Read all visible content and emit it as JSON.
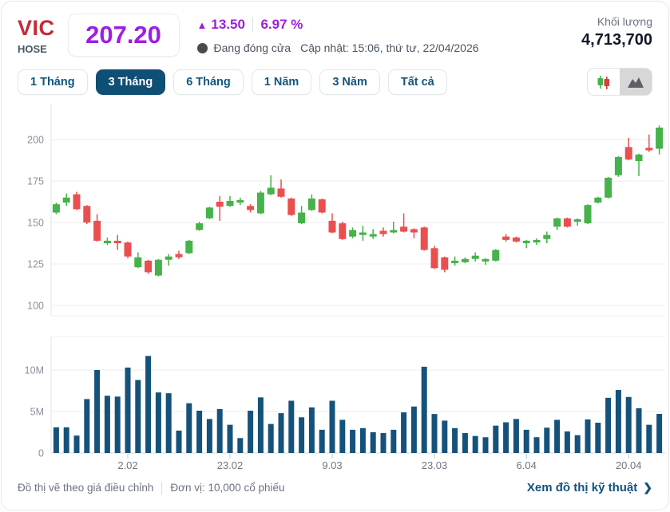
{
  "header": {
    "symbol": "VIC",
    "exchange": "HOSE",
    "price": "207.20",
    "up_arrow": "▲",
    "change": "13.50",
    "change_pct": "6.97 %",
    "market_status": "Đang đóng cửa",
    "updated": "Cập nhật: 15:06, thứ tư, 22/04/2026",
    "volume_label": "Khối lượng",
    "volume_value": "4,713,700"
  },
  "tabs": {
    "items": [
      {
        "label": "1 Tháng",
        "active": false
      },
      {
        "label": "3 Tháng",
        "active": true
      },
      {
        "label": "6 Tháng",
        "active": false
      },
      {
        "label": "1 Năm",
        "active": false
      },
      {
        "label": "3 Năm",
        "active": false
      },
      {
        "label": "Tất cả",
        "active": false
      }
    ]
  },
  "view_toggle": {
    "candlestick_icon": "candlestick-chart-icon",
    "area_icon": "area-chart-icon",
    "selected": "area"
  },
  "footer": {
    "note_adjusted": "Đồ thị vẽ theo giá điều chỉnh",
    "note_unit": "Đơn vị: 10,000 cổ phiếu",
    "link": "Xem đồ thị kỹ thuật",
    "chevron": "❯"
  },
  "chart_data": {
    "type": "candlestick+volume",
    "title": "",
    "ohlc_format": [
      "open",
      "high",
      "low",
      "close"
    ],
    "price_axis": {
      "ticks": [
        200,
        175,
        150,
        125,
        100
      ],
      "range": [
        96,
        220
      ],
      "grid": true
    },
    "volume_axis": {
      "tick_values": [
        10000000,
        5000000,
        0
      ],
      "tick_labels": [
        "10M",
        "5M",
        "0"
      ],
      "range": [
        0,
        12500000
      ]
    },
    "x_ticks": [
      {
        "index": 7,
        "label": "2.02"
      },
      {
        "index": 17,
        "label": "23.02"
      },
      {
        "index": 27,
        "label": "9.03"
      },
      {
        "index": 37,
        "label": "23.03"
      },
      {
        "index": 46,
        "label": "6.04"
      },
      {
        "index": 56,
        "label": "20.04"
      }
    ],
    "colors": {
      "up": "#45b24a",
      "down": "#ea4f4f",
      "volume": "#15527b"
    },
    "candles": [
      [
        156,
        162,
        155,
        161
      ],
      [
        162,
        167.5,
        160,
        165
      ],
      [
        167,
        168.5,
        157.5,
        158
      ],
      [
        160,
        160.5,
        149,
        150
      ],
      [
        151,
        155,
        138.5,
        139
      ],
      [
        137.5,
        141,
        136.5,
        139
      ],
      [
        139,
        142.5,
        133.5,
        137.5
      ],
      [
        138,
        138.5,
        128.5,
        129.5
      ],
      [
        123,
        132,
        122.5,
        129
      ],
      [
        127,
        127.5,
        119,
        120
      ],
      [
        118,
        128,
        117.5,
        127.5
      ],
      [
        127.5,
        131,
        124,
        129.5
      ],
      [
        131,
        133,
        128,
        129
      ],
      [
        131.5,
        139.5,
        131,
        139
      ],
      [
        145.5,
        150.5,
        145,
        149.5
      ],
      [
        152.5,
        159.5,
        152,
        159
      ],
      [
        162.5,
        166,
        151,
        159.5
      ],
      [
        160,
        166,
        159.5,
        163
      ],
      [
        162,
        165,
        160.5,
        163.5
      ],
      [
        160,
        161,
        156,
        157.5
      ],
      [
        155.5,
        169,
        155,
        168
      ],
      [
        167,
        178.5,
        166.5,
        171
      ],
      [
        170.5,
        176,
        165,
        165.5
      ],
      [
        164.5,
        165,
        154,
        154.5
      ],
      [
        149.5,
        160,
        149,
        156
      ],
      [
        157.5,
        167,
        157,
        164.5
      ],
      [
        164,
        164.5,
        155.5,
        156
      ],
      [
        151,
        155.5,
        143.5,
        144
      ],
      [
        149.5,
        150.5,
        139.5,
        140
      ],
      [
        141.5,
        147,
        140.5,
        145.5
      ],
      [
        142.5,
        148,
        139,
        144
      ],
      [
        141.5,
        146,
        140,
        143
      ],
      [
        145,
        147,
        141.5,
        143
      ],
      [
        144,
        150.5,
        143.5,
        145.5
      ],
      [
        147.5,
        155.5,
        144,
        144.5
      ],
      [
        146,
        146.5,
        140.5,
        144
      ],
      [
        147,
        147.5,
        133,
        133.5
      ],
      [
        134.5,
        136,
        122,
        122.5
      ],
      [
        129,
        129.5,
        120,
        121.5
      ],
      [
        125.5,
        129.5,
        124,
        127
      ],
      [
        126,
        129,
        125.5,
        128
      ],
      [
        128,
        132,
        126.5,
        130
      ],
      [
        126.5,
        128.5,
        124.5,
        128
      ],
      [
        127,
        134,
        126.5,
        133.5
      ],
      [
        141.5,
        143,
        138.5,
        139.5
      ],
      [
        141,
        141.5,
        138,
        138.5
      ],
      [
        137.5,
        139.5,
        134.5,
        139
      ],
      [
        138,
        140.5,
        136.5,
        139.5
      ],
      [
        140,
        144.5,
        137.5,
        142.5
      ],
      [
        147.5,
        153,
        145.5,
        152.5
      ],
      [
        152.5,
        153,
        147,
        147.5
      ],
      [
        150.5,
        152.5,
        148,
        152
      ],
      [
        149.5,
        161,
        149,
        160.5
      ],
      [
        162,
        165.5,
        161.5,
        165
      ],
      [
        165,
        177.5,
        164.5,
        177
      ],
      [
        178.5,
        190,
        177.5,
        189.5
      ],
      [
        195.5,
        201,
        187.5,
        188
      ],
      [
        187,
        191.5,
        178,
        191
      ],
      [
        195,
        203,
        192.5,
        193.5
      ],
      [
        194.5,
        208.5,
        191,
        207.2
      ]
    ],
    "volumes": [
      3100000,
      3100000,
      2100000,
      6500000,
      10000000,
      6900000,
      6800000,
      10300000,
      8800000,
      11700000,
      7300000,
      7200000,
      2700000,
      6000000,
      5100000,
      4100000,
      5300000,
      3400000,
      1800000,
      5100000,
      6700000,
      3500000,
      4800000,
      6300000,
      4300000,
      5500000,
      2800000,
      6300000,
      4000000,
      2800000,
      3000000,
      2500000,
      2400000,
      2800000,
      4900000,
      5600000,
      10400000,
      4700000,
      3900000,
      3000000,
      2400000,
      2050000,
      1900000,
      3300000,
      3700000,
      4100000,
      2800000,
      1900000,
      3050000,
      4000000,
      2600000,
      2150000,
      4050000,
      3650000,
      6650000,
      7600000,
      6750000,
      5400000,
      3400000,
      4713700
    ]
  }
}
